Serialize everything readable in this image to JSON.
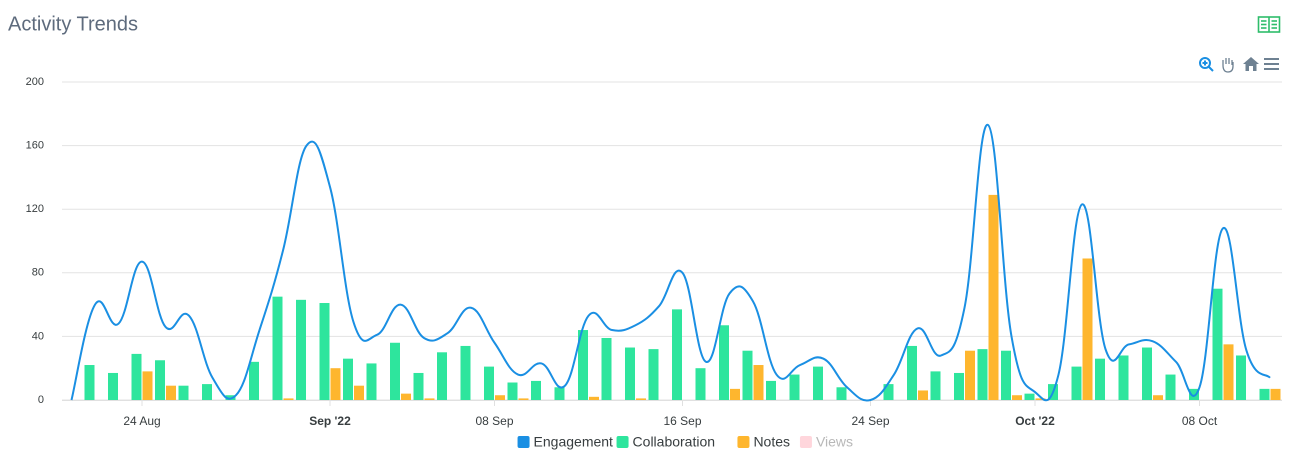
{
  "chart_data": {
    "type": "combo",
    "title": "Activity Trends",
    "x": [
      "2022-08-21",
      "2022-08-22",
      "2022-08-23",
      "2022-08-24",
      "2022-08-25",
      "2022-08-26",
      "2022-08-27",
      "2022-08-28",
      "2022-08-29",
      "2022-08-30",
      "2022-08-31",
      "2022-09-01",
      "2022-09-02",
      "2022-09-03",
      "2022-09-04",
      "2022-09-05",
      "2022-09-06",
      "2022-09-07",
      "2022-09-08",
      "2022-09-09",
      "2022-09-10",
      "2022-09-11",
      "2022-09-12",
      "2022-09-13",
      "2022-09-14",
      "2022-09-15",
      "2022-09-16",
      "2022-09-17",
      "2022-09-18",
      "2022-09-19",
      "2022-09-20",
      "2022-09-21",
      "2022-09-22",
      "2022-09-23",
      "2022-09-24",
      "2022-09-25",
      "2022-09-26",
      "2022-09-27",
      "2022-09-28",
      "2022-09-29",
      "2022-09-30",
      "2022-10-01",
      "2022-10-02",
      "2022-10-03",
      "2022-10-04",
      "2022-10-05",
      "2022-10-06",
      "2022-10-07",
      "2022-10-08",
      "2022-10-09",
      "2022-10-10",
      "2022-10-11"
    ],
    "series": [
      {
        "name": "Engagement",
        "type": "line",
        "color": "#1a8fe3",
        "visible": true,
        "values": [
          0,
          60,
          48,
          87,
          46,
          53,
          14,
          3,
          44,
          94,
          160,
          134,
          49,
          41,
          60,
          39,
          42,
          58,
          36,
          16,
          23,
          9,
          53,
          44,
          47,
          59,
          80,
          24,
          67,
          62,
          16,
          22,
          26,
          8,
          0,
          16,
          45,
          28,
          58,
          173,
          40,
          5,
          16,
          123,
          32,
          35,
          37,
          24,
          8,
          108,
          31,
          14
        ]
      },
      {
        "name": "Collaboration",
        "type": "bar",
        "color": "#2ee59d",
        "visible": true,
        "values": [
          0,
          22,
          17,
          29,
          25,
          9,
          10,
          3,
          24,
          65,
          63,
          61,
          26,
          23,
          36,
          17,
          30,
          34,
          21,
          11,
          12,
          8,
          44,
          39,
          33,
          32,
          57,
          20,
          47,
          31,
          12,
          16,
          21,
          8,
          0,
          10,
          34,
          18,
          17,
          32,
          31,
          4,
          10,
          21,
          26,
          28,
          33,
          16,
          7,
          70,
          28,
          7
        ]
      },
      {
        "name": "Notes",
        "type": "bar",
        "color": "#feb62e",
        "visible": true,
        "values": [
          0,
          0,
          0,
          18,
          9,
          0,
          0,
          0,
          0,
          1,
          0,
          20,
          9,
          0,
          4,
          1,
          0,
          0,
          3,
          1,
          0,
          0,
          2,
          0,
          1,
          0,
          0,
          0,
          7,
          22,
          0,
          0,
          0,
          0,
          0,
          0,
          6,
          0,
          31,
          129,
          3,
          1,
          0,
          89,
          0,
          0,
          3,
          0,
          0,
          35,
          0,
          7
        ]
      },
      {
        "name": "Views",
        "type": "bar",
        "color": "#ffd6dc",
        "visible": false,
        "values": [
          null,
          null,
          null,
          null,
          null,
          null,
          null,
          null,
          null,
          null,
          null,
          null,
          null,
          null,
          null,
          null,
          null,
          null,
          null,
          null,
          null,
          null,
          null,
          null,
          null,
          null,
          null,
          null,
          null,
          null,
          null,
          null,
          null,
          null,
          null,
          null,
          null,
          null,
          null,
          null,
          null,
          null,
          null,
          null,
          null,
          null,
          null,
          null,
          null,
          null,
          null,
          null
        ]
      }
    ],
    "xticks": [
      {
        "value": "2022-08-24",
        "label": "24 Aug"
      },
      {
        "value": "2022-09-01",
        "label": "Sep '22"
      },
      {
        "value": "2022-09-08",
        "label": "08 Sep"
      },
      {
        "value": "2022-09-16",
        "label": "16 Sep"
      },
      {
        "value": "2022-09-24",
        "label": "24 Sep"
      },
      {
        "value": "2022-10-01",
        "label": "Oct '22"
      },
      {
        "value": "2022-10-08",
        "label": "08 Oct"
      }
    ],
    "ylim": [
      0,
      200
    ],
    "yticks": [
      0,
      40,
      80,
      120,
      160,
      200
    ],
    "grid": true,
    "legend": "bottom"
  }
}
